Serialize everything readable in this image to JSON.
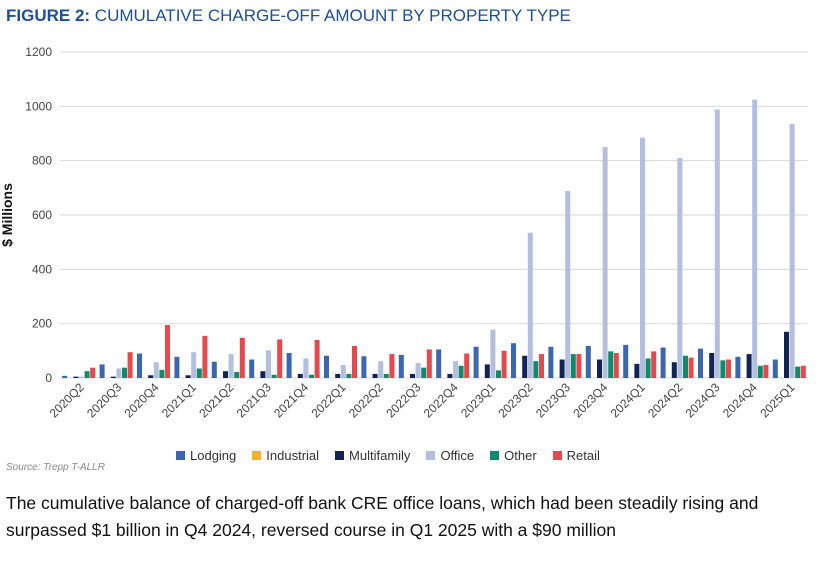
{
  "header": {
    "title_bold": "FIGURE 2:",
    "title_rest": " CUMULATIVE CHARGE-OFF AMOUNT BY PROPERTY TYPE"
  },
  "source": "Source: Trepp T-ALLR",
  "caption": "The cumulative balance of charged-off bank CRE office loans, which had been steadily rising and surpassed $1 billion in Q4 2024, reversed course in Q1 2025 with a $90 million",
  "chart_data": {
    "type": "bar",
    "title": "CUMULATIVE CHARGE-OFF AMOUNT BY PROPERTY TYPE",
    "xlabel": "",
    "ylabel": "$ Millions",
    "ylim": [
      0,
      1200
    ],
    "yticks": [
      0,
      200,
      400,
      600,
      800,
      1000,
      1200
    ],
    "grid": true,
    "legend_position": "bottom",
    "categories": [
      "2020Q2",
      "2020Q3",
      "2020Q4",
      "2021Q1",
      "2021Q2",
      "2021Q3",
      "2021Q4",
      "2022Q1",
      "2022Q2",
      "2022Q3",
      "2022Q4",
      "2023Q1",
      "2023Q2",
      "2023Q3",
      "2023Q4",
      "2024Q1",
      "2024Q2",
      "2024Q3",
      "2024Q4",
      "2025Q1"
    ],
    "series": [
      {
        "name": "Lodging",
        "color": "#3a67b0",
        "values": [
          8,
          50,
          90,
          78,
          60,
          68,
          92,
          82,
          80,
          85,
          105,
          115,
          128,
          115,
          118,
          122,
          112,
          108,
          78,
          68
        ]
      },
      {
        "name": "Industrial",
        "color": "#f2b41f",
        "values": [
          0,
          0,
          0,
          0,
          0,
          0,
          0,
          0,
          0,
          0,
          0,
          0,
          0,
          0,
          0,
          0,
          0,
          0,
          0,
          0
        ]
      },
      {
        "name": "Multifamily",
        "color": "#10254f",
        "values": [
          5,
          5,
          10,
          10,
          25,
          25,
          15,
          15,
          15,
          15,
          15,
          50,
          82,
          68,
          68,
          52,
          58,
          92,
          88,
          170
        ]
      },
      {
        "name": "Office",
        "color": "#b4bfe0",
        "values": [
          5,
          35,
          58,
          95,
          88,
          102,
          72,
          48,
          62,
          55,
          62,
          178,
          535,
          688,
          850,
          885,
          810,
          988,
          1025,
          935
        ]
      },
      {
        "name": "Other",
        "color": "#0f8a6a",
        "values": [
          25,
          38,
          30,
          35,
          22,
          12,
          12,
          15,
          15,
          38,
          45,
          28,
          62,
          88,
          98,
          72,
          82,
          65,
          45,
          42
        ]
      },
      {
        "name": "Retail",
        "color": "#e5484d",
        "values": [
          38,
          95,
          195,
          155,
          148,
          142,
          140,
          118,
          88,
          105,
          90,
          100,
          88,
          88,
          92,
          98,
          75,
          68,
          48,
          45
        ]
      }
    ]
  }
}
